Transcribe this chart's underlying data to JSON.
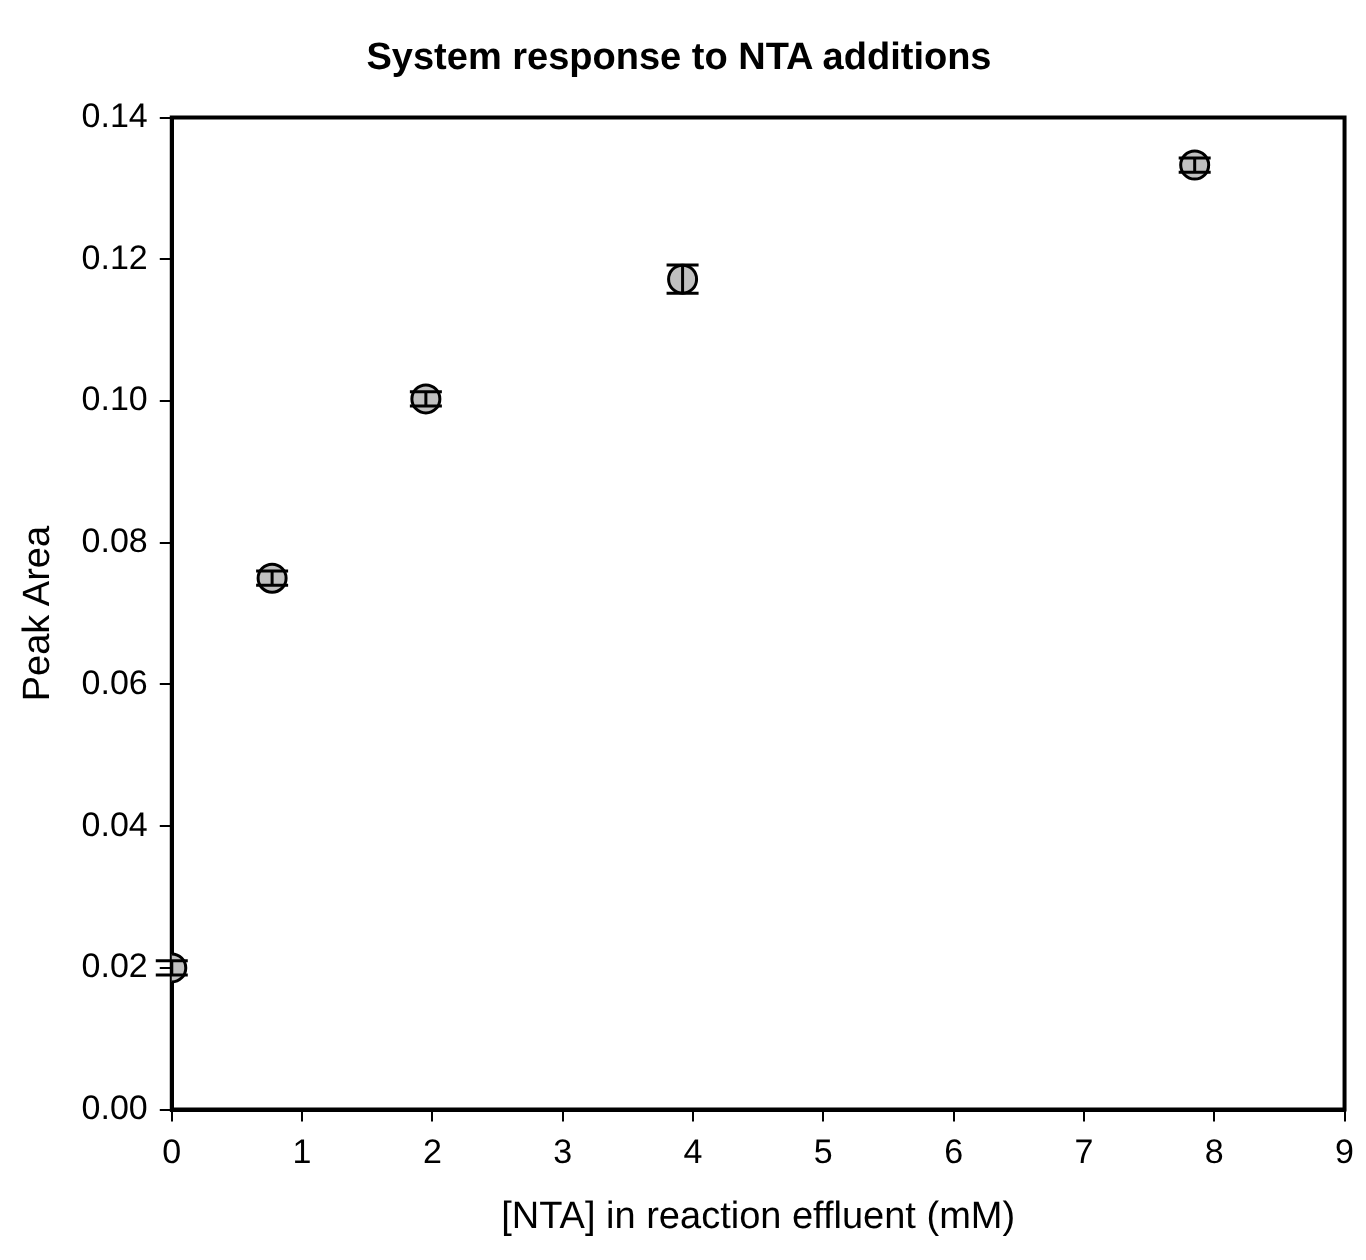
{
  "chart_data": {
    "type": "scatter",
    "title": "System response to NTA additions",
    "xlabel": "[NTA] in reaction effluent (mM)",
    "ylabel": "Peak Area",
    "x": [
      0,
      0.77,
      1.95,
      3.92,
      7.85
    ],
    "series": [
      {
        "color": "#c0c0c0",
        "values": [
          0.02,
          0.075,
          0.1003,
          0.1172,
          0.1333
        ],
        "errors": [
          0.001,
          0.001,
          0.001,
          0.002,
          0.001
        ]
      }
    ],
    "xlim": [
      0,
      9
    ],
    "xticks": [
      0,
      1,
      2,
      3,
      4,
      5,
      6,
      7,
      8,
      9
    ],
    "ylim": [
      0,
      0.14
    ],
    "yticks": [
      {
        "value": 0,
        "label": "0.00"
      },
      {
        "value": 0.02,
        "label": "0.02"
      },
      {
        "value": 0.04,
        "label": "0.04"
      },
      {
        "value": 0.06,
        "label": "0.06"
      },
      {
        "value": 0.08,
        "label": "0.08"
      },
      {
        "value": 0.1,
        "label": "0.10"
      },
      {
        "value": 0.12,
        "label": "0.12"
      },
      {
        "value": 0.14,
        "label": "0.14"
      }
    ],
    "grid": false,
    "legend": false,
    "marker": "circle"
  }
}
